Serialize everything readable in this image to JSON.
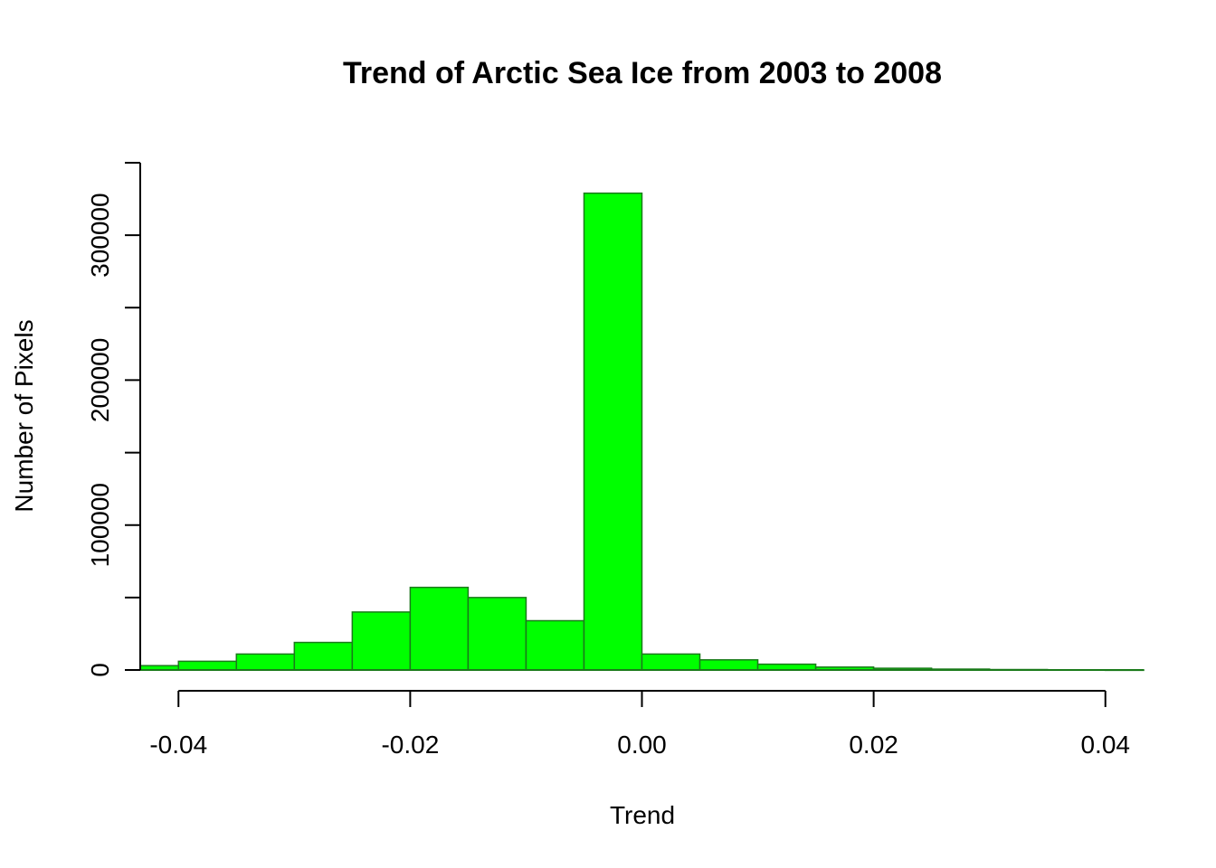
{
  "chart_data": {
    "type": "bar",
    "subtype": "histogram",
    "title": "Trend of Arctic Sea Ice from 2003 to 2008",
    "xlabel": "Trend",
    "ylabel": "Number of Pixels",
    "xlim": [
      -0.0433,
      0.0433
    ],
    "ylim": [
      0,
      350000
    ],
    "x_ticks": [
      -0.04,
      -0.02,
      0.0,
      0.02,
      0.04
    ],
    "x_tick_labels": [
      "-0.04",
      "-0.02",
      "0.00",
      "0.02",
      "0.04"
    ],
    "y_ticks": [
      0,
      50000,
      100000,
      150000,
      200000,
      250000,
      300000,
      350000
    ],
    "y_tick_labels": [
      "0",
      "",
      "100000",
      "",
      "200000",
      "",
      "300000",
      ""
    ],
    "bins": [
      {
        "start": -0.045,
        "end": -0.04,
        "count": 3000
      },
      {
        "start": -0.04,
        "end": -0.035,
        "count": 6000
      },
      {
        "start": -0.035,
        "end": -0.03,
        "count": 11000
      },
      {
        "start": -0.03,
        "end": -0.025,
        "count": 19000
      },
      {
        "start": -0.025,
        "end": -0.02,
        "count": 40000
      },
      {
        "start": -0.02,
        "end": -0.015,
        "count": 57000
      },
      {
        "start": -0.015,
        "end": -0.01,
        "count": 50000
      },
      {
        "start": -0.01,
        "end": -0.005,
        "count": 34000
      },
      {
        "start": -0.005,
        "end": 0.0,
        "count": 329000
      },
      {
        "start": 0.0,
        "end": 0.005,
        "count": 11000
      },
      {
        "start": 0.005,
        "end": 0.01,
        "count": 7000
      },
      {
        "start": 0.01,
        "end": 0.015,
        "count": 4000
      },
      {
        "start": 0.015,
        "end": 0.02,
        "count": 2000
      },
      {
        "start": 0.02,
        "end": 0.025,
        "count": 1200
      },
      {
        "start": 0.025,
        "end": 0.03,
        "count": 600
      },
      {
        "start": 0.03,
        "end": 0.035,
        "count": 300
      },
      {
        "start": 0.035,
        "end": 0.04,
        "count": 150
      },
      {
        "start": 0.04,
        "end": 0.045,
        "count": 80
      }
    ],
    "bar_color": "#00ff00",
    "bar_border_color": "#1a7a1a",
    "grid": false,
    "legend": "none"
  }
}
